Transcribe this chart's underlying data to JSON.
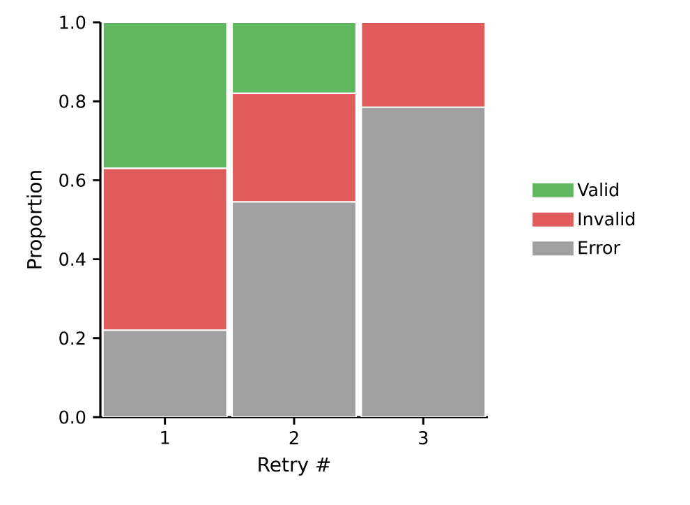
{
  "chart_data": {
    "type": "bar",
    "stacked": true,
    "xlabel": "Retry #",
    "ylabel": "Proportion",
    "categories": [
      "1",
      "2",
      "3"
    ],
    "series": [
      {
        "name": "Error",
        "color": "#a0a0a0",
        "values": [
          0.22,
          0.545,
          0.785
        ]
      },
      {
        "name": "Invalid",
        "color": "#e05c5c",
        "values": [
          0.41,
          0.275,
          0.215
        ]
      },
      {
        "name": "Valid",
        "color": "#5fb760",
        "values": [
          0.37,
          0.18,
          0
        ]
      }
    ],
    "ylim": [
      0,
      1
    ],
    "yticks": [
      {
        "value": 0,
        "label": "0.0"
      },
      {
        "value": 0.2,
        "label": "0.2"
      },
      {
        "value": 0.4,
        "label": "0.4"
      },
      {
        "value": 0.6,
        "label": "0.6"
      },
      {
        "value": 0.8,
        "label": "0.8"
      },
      {
        "value": 1,
        "label": "1.0"
      }
    ],
    "legend": "right",
    "grid": false
  }
}
